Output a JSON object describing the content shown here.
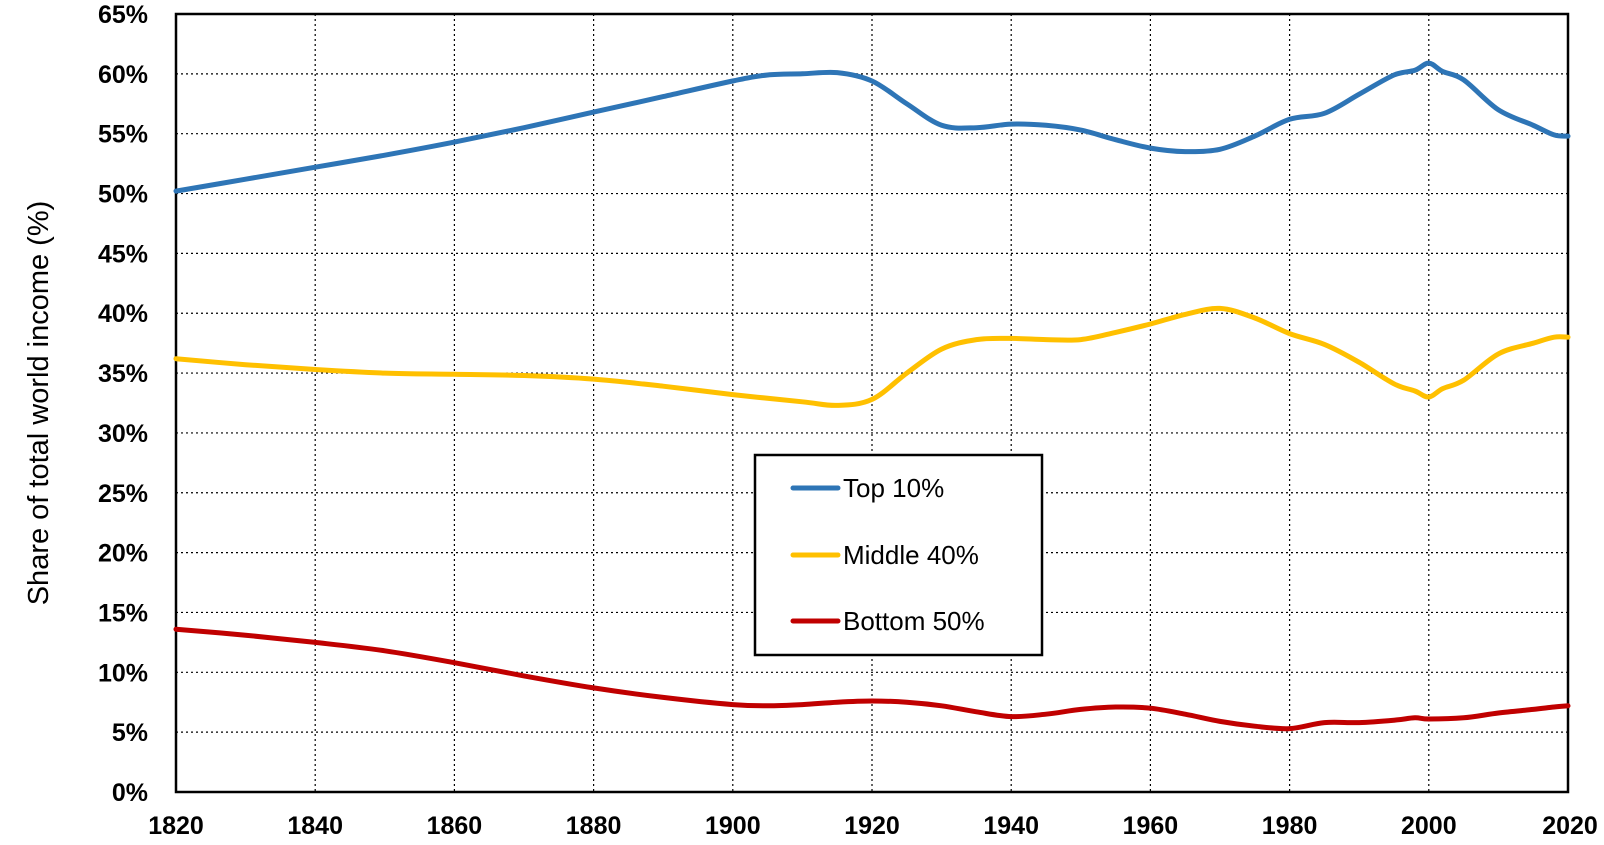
{
  "chart_data": {
    "type": "line",
    "title": "",
    "xlabel": "",
    "ylabel": "Share of total world income (%)",
    "xlim": [
      1820,
      2020
    ],
    "ylim": [
      0,
      65
    ],
    "y_tick_step": 5,
    "x_tick_step": 20,
    "y_tick_suffix": "%",
    "grid": true,
    "legend_position": "center",
    "series": [
      {
        "name": "Top 10%",
        "color": "#2E75B6",
        "points": [
          [
            1820,
            50.2
          ],
          [
            1830,
            51.2
          ],
          [
            1840,
            52.2
          ],
          [
            1850,
            53.2
          ],
          [
            1860,
            54.3
          ],
          [
            1870,
            55.5
          ],
          [
            1880,
            56.8
          ],
          [
            1890,
            58.1
          ],
          [
            1900,
            59.4
          ],
          [
            1905,
            59.9
          ],
          [
            1910,
            60.0
          ],
          [
            1915,
            60.1
          ],
          [
            1920,
            59.4
          ],
          [
            1925,
            57.5
          ],
          [
            1930,
            55.7
          ],
          [
            1935,
            55.5
          ],
          [
            1940,
            55.8
          ],
          [
            1945,
            55.7
          ],
          [
            1950,
            55.3
          ],
          [
            1955,
            54.5
          ],
          [
            1960,
            53.8
          ],
          [
            1965,
            53.5
          ],
          [
            1970,
            53.7
          ],
          [
            1975,
            54.8
          ],
          [
            1980,
            56.2
          ],
          [
            1985,
            56.7
          ],
          [
            1990,
            58.3
          ],
          [
            1995,
            59.9
          ],
          [
            1998,
            60.3
          ],
          [
            2000,
            60.9
          ],
          [
            2002,
            60.2
          ],
          [
            2005,
            59.5
          ],
          [
            2010,
            57.0
          ],
          [
            2015,
            55.7
          ],
          [
            2018,
            54.9
          ],
          [
            2020,
            54.8
          ]
        ]
      },
      {
        "name": "Middle 40%",
        "color": "#FFC000",
        "points": [
          [
            1820,
            36.2
          ],
          [
            1830,
            35.7
          ],
          [
            1840,
            35.3
          ],
          [
            1850,
            35.0
          ],
          [
            1860,
            34.9
          ],
          [
            1870,
            34.8
          ],
          [
            1880,
            34.5
          ],
          [
            1890,
            33.9
          ],
          [
            1900,
            33.2
          ],
          [
            1910,
            32.6
          ],
          [
            1915,
            32.3
          ],
          [
            1920,
            32.8
          ],
          [
            1925,
            35.0
          ],
          [
            1930,
            37.0
          ],
          [
            1935,
            37.8
          ],
          [
            1940,
            37.9
          ],
          [
            1945,
            37.8
          ],
          [
            1950,
            37.8
          ],
          [
            1955,
            38.4
          ],
          [
            1960,
            39.1
          ],
          [
            1965,
            39.9
          ],
          [
            1970,
            40.4
          ],
          [
            1975,
            39.6
          ],
          [
            1980,
            38.3
          ],
          [
            1985,
            37.4
          ],
          [
            1990,
            35.9
          ],
          [
            1995,
            34.1
          ],
          [
            1998,
            33.5
          ],
          [
            2000,
            33.0
          ],
          [
            2002,
            33.7
          ],
          [
            2005,
            34.4
          ],
          [
            2010,
            36.6
          ],
          [
            2015,
            37.5
          ],
          [
            2018,
            38.0
          ],
          [
            2020,
            38.0
          ]
        ]
      },
      {
        "name": "Bottom 50%",
        "color": "#C00000",
        "points": [
          [
            1820,
            13.6
          ],
          [
            1830,
            13.1
          ],
          [
            1840,
            12.5
          ],
          [
            1850,
            11.8
          ],
          [
            1860,
            10.8
          ],
          [
            1870,
            9.7
          ],
          [
            1880,
            8.7
          ],
          [
            1890,
            7.9
          ],
          [
            1900,
            7.3
          ],
          [
            1905,
            7.2
          ],
          [
            1910,
            7.3
          ],
          [
            1915,
            7.5
          ],
          [
            1920,
            7.6
          ],
          [
            1925,
            7.5
          ],
          [
            1930,
            7.2
          ],
          [
            1935,
            6.7
          ],
          [
            1940,
            6.3
          ],
          [
            1945,
            6.5
          ],
          [
            1950,
            6.9
          ],
          [
            1955,
            7.1
          ],
          [
            1960,
            7.0
          ],
          [
            1965,
            6.5
          ],
          [
            1970,
            5.9
          ],
          [
            1975,
            5.5
          ],
          [
            1980,
            5.3
          ],
          [
            1985,
            5.8
          ],
          [
            1990,
            5.8
          ],
          [
            1995,
            6.0
          ],
          [
            1998,
            6.2
          ],
          [
            2000,
            6.1
          ],
          [
            2005,
            6.2
          ],
          [
            2010,
            6.6
          ],
          [
            2015,
            6.9
          ],
          [
            2018,
            7.1
          ],
          [
            2020,
            7.2
          ]
        ]
      }
    ]
  }
}
